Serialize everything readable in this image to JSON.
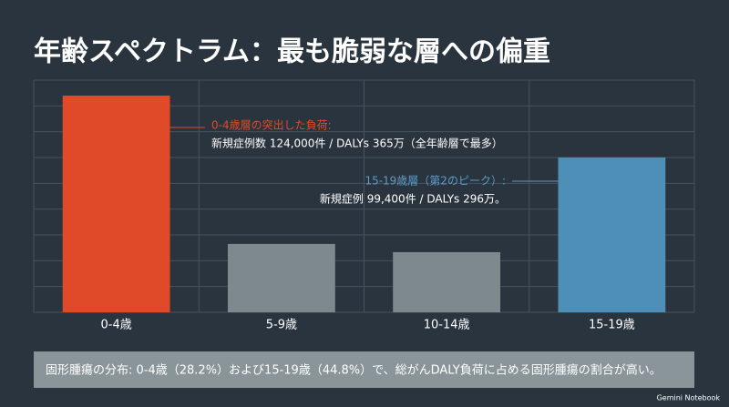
{
  "chart_data": {
    "type": "bar",
    "title": "年齢スペクトラム：最も脆弱な層への偏重",
    "categories": [
      "0-4歳",
      "5-9歳",
      "10-14歳",
      "15-19歳"
    ],
    "values": [
      8.4,
      2.65,
      2.33,
      6.0
    ],
    "colors": [
      "#e04a28",
      "#7e898d",
      "#7e898d",
      "#4e8fb8"
    ],
    "ylim": [
      0,
      9
    ],
    "yticks": [
      0,
      1,
      2,
      3,
      4,
      5,
      6,
      7,
      8,
      9
    ],
    "grid": true,
    "annotations": [
      {
        "title": "0-4歳層の突出した負荷:",
        "text": "新規症例数 124,000件 / DALYs 365万（全年齢層で最多）",
        "color": "#e04a28"
      },
      {
        "title": "15-19歳層（第2のピーク）:",
        "text": "新規症例 99,400件 / DALYs 296万。",
        "color": "#5a9ccc"
      }
    ],
    "footnote": "固形腫瘍の分布: 0-4歳（28.2%）および15-19歳（44.8%）で、総がんDALY負荷に占める固形腫瘍の割合が高い。",
    "watermark": "Gemini Notebook"
  }
}
